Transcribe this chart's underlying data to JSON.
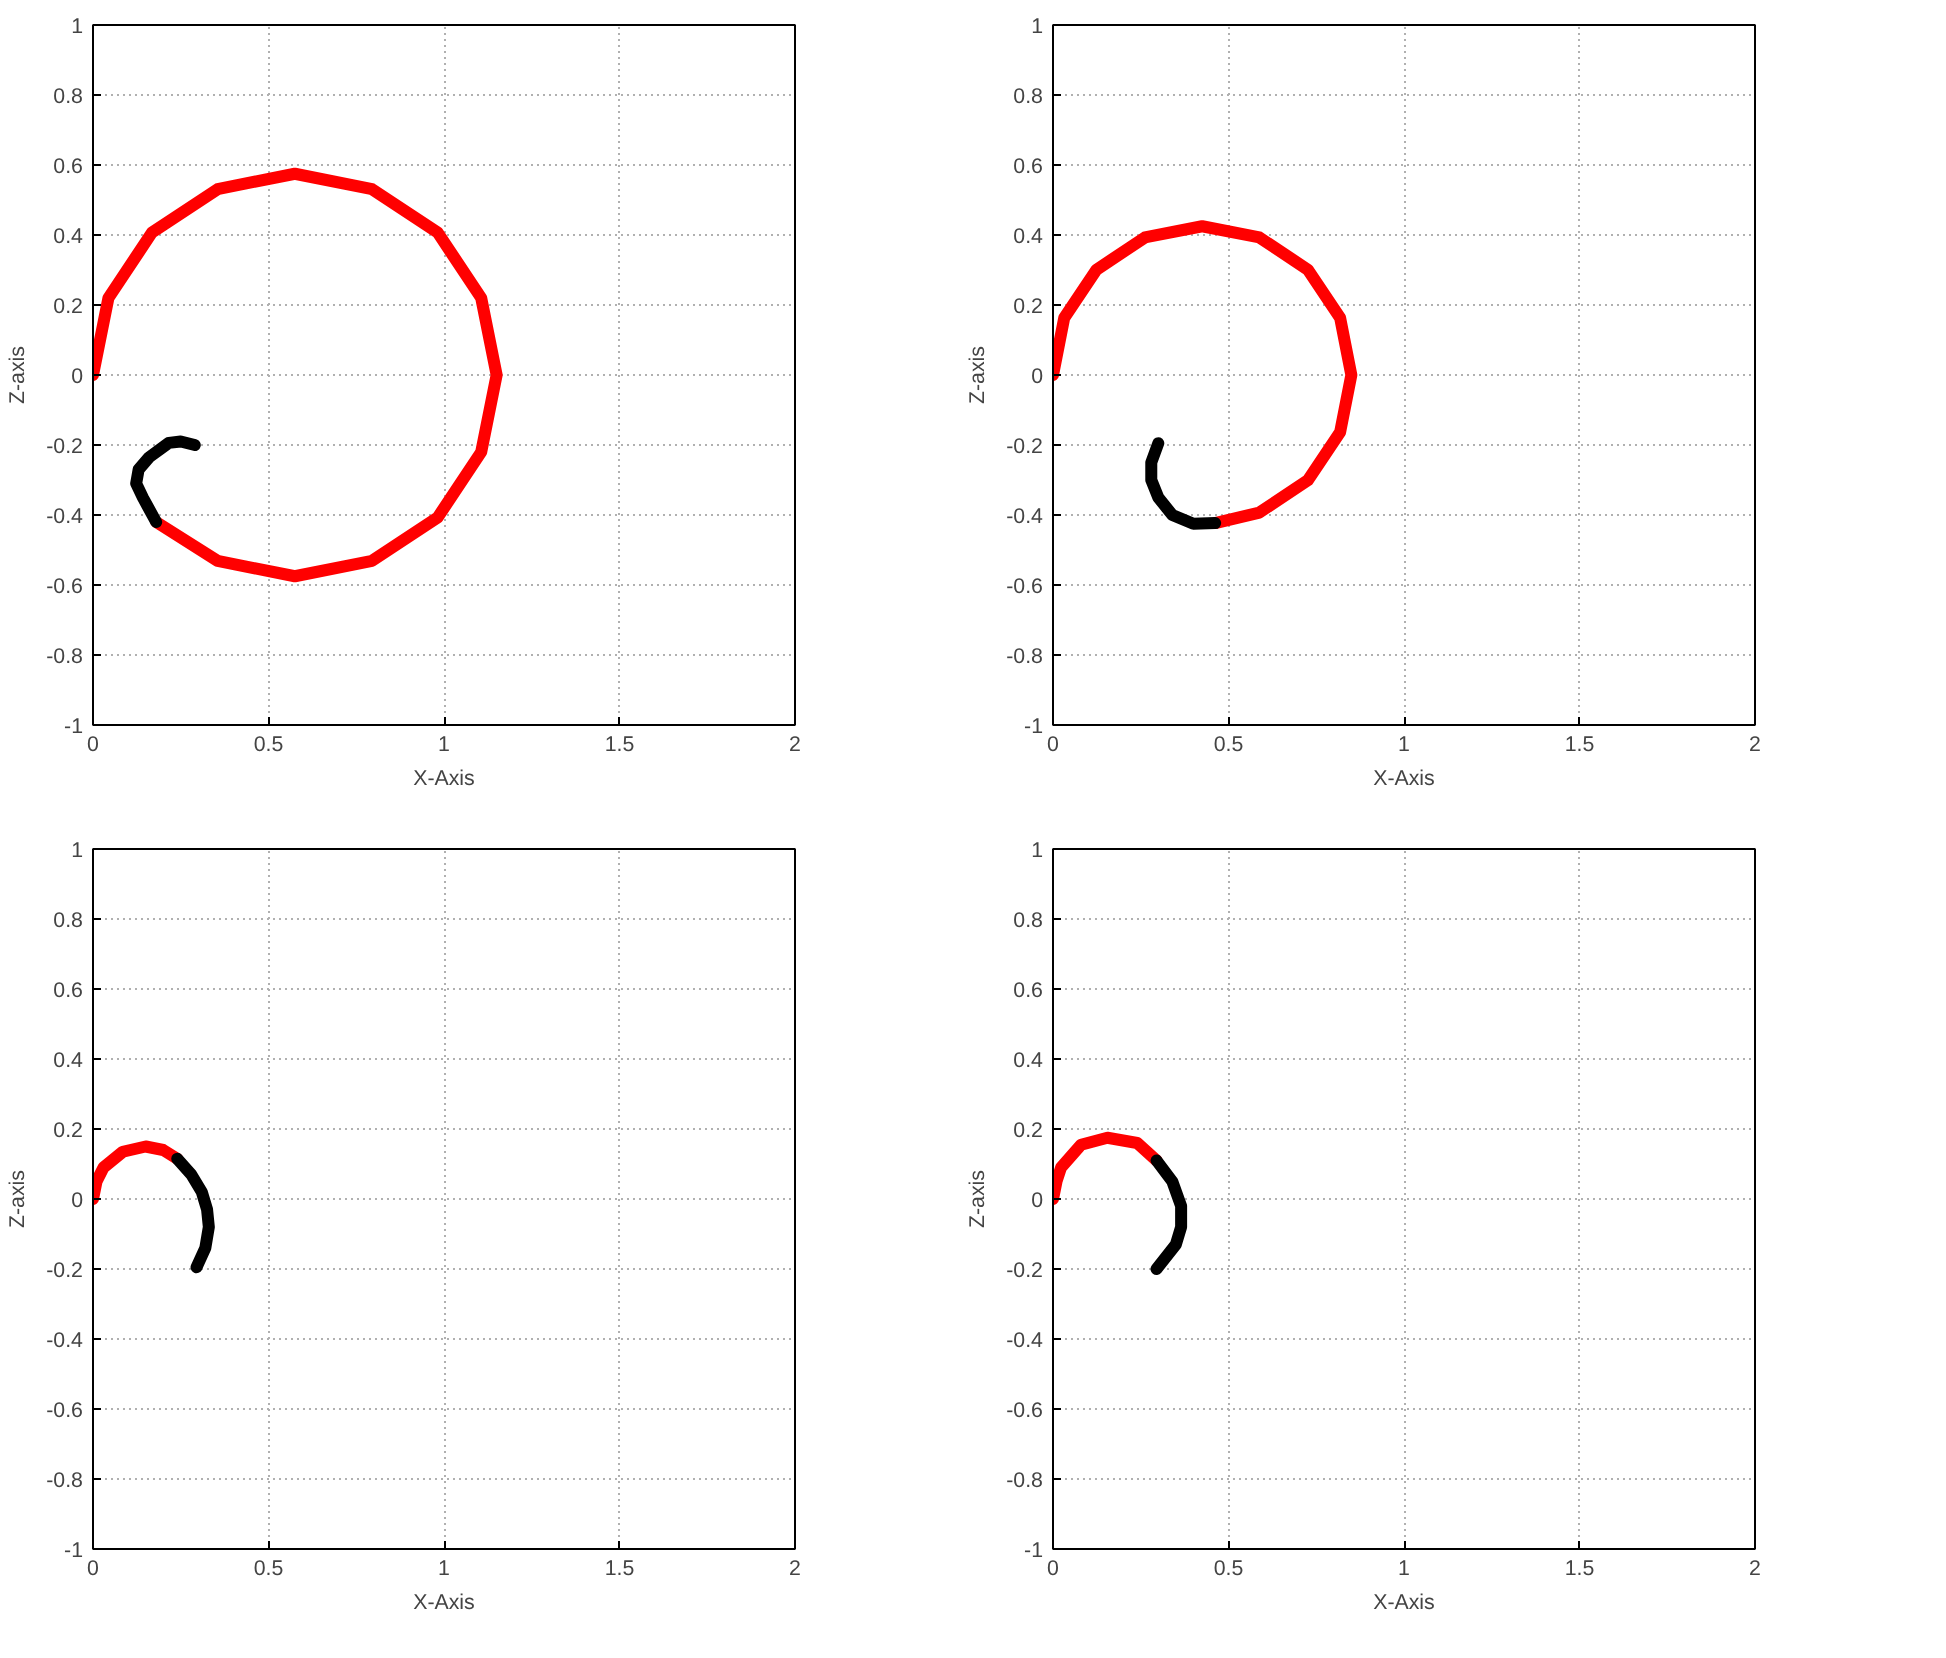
{
  "chart_data": [
    {
      "type": "line",
      "xlabel": "X-Axis",
      "ylabel": "Z-axis",
      "xlim": [
        0,
        2
      ],
      "ylim": [
        -1,
        1
      ],
      "xticks": [
        0,
        0.5,
        1,
        1.5,
        2
      ],
      "yticks": [
        -1,
        -0.8,
        -0.6,
        -0.4,
        -0.2,
        0,
        0.2,
        0.4,
        0.6,
        0.8,
        1
      ],
      "grid": true,
      "marker": "none",
      "line_style": "solid",
      "series": [
        {
          "color": "#ff0000",
          "x": [
            0,
            0.044,
            0.168,
            0.355,
            0.575,
            0.795,
            0.982,
            1.106,
            1.15,
            1.106,
            0.982,
            0.795,
            0.575,
            0.355,
            0.18
          ],
          "values": [
            0,
            0.22,
            0.407,
            0.531,
            0.575,
            0.531,
            0.407,
            0.22,
            0,
            -0.22,
            -0.407,
            -0.531,
            -0.575,
            -0.531,
            -0.42
          ]
        },
        {
          "color": "#000000",
          "x": [
            0.18,
            0.142,
            0.123,
            0.13,
            0.16,
            0.216,
            0.25,
            0.29
          ],
          "values": [
            -0.42,
            -0.35,
            -0.31,
            -0.27,
            -0.235,
            -0.194,
            -0.19,
            -0.2
          ]
        }
      ]
    },
    {
      "type": "line",
      "xlabel": "X-Axis",
      "ylabel": "Z-axis",
      "xlim": [
        0,
        2
      ],
      "ylim": [
        -1,
        1
      ],
      "xticks": [
        0,
        0.5,
        1,
        1.5,
        2
      ],
      "yticks": [
        -1,
        -0.8,
        -0.6,
        -0.4,
        -0.2,
        0,
        0.2,
        0.4,
        0.6,
        0.8,
        1
      ],
      "grid": true,
      "marker": "none",
      "line_style": "solid",
      "series": [
        {
          "color": "#ff0000",
          "x": [
            0,
            0.032,
            0.124,
            0.262,
            0.425,
            0.588,
            0.726,
            0.818,
            0.85,
            0.818,
            0.726,
            0.588,
            0.462
          ],
          "values": [
            0,
            0.163,
            0.301,
            0.393,
            0.425,
            0.393,
            0.301,
            0.163,
            0,
            -0.163,
            -0.301,
            -0.393,
            -0.423
          ]
        },
        {
          "color": "#000000",
          "x": [
            0.462,
            0.4,
            0.34,
            0.3,
            0.28,
            0.28,
            0.3
          ],
          "values": [
            -0.423,
            -0.425,
            -0.4,
            -0.35,
            -0.3,
            -0.25,
            -0.195
          ]
        }
      ]
    },
    {
      "type": "line",
      "xlabel": "X-Axis",
      "ylabel": "Z-axis",
      "xlim": [
        0,
        2
      ],
      "ylim": [
        -1,
        1
      ],
      "xticks": [
        0,
        0.5,
        1,
        1.5,
        2
      ],
      "yticks": [
        -1,
        -0.8,
        -0.6,
        -0.4,
        -0.2,
        0,
        0.2,
        0.4,
        0.6,
        0.8,
        1
      ],
      "grid": true,
      "marker": "none",
      "line_style": "solid",
      "series": [
        {
          "color": "#ff0000",
          "x": [
            0,
            0.01,
            0.03,
            0.085,
            0.15,
            0.2,
            0.24
          ],
          "values": [
            0,
            0.05,
            0.09,
            0.135,
            0.15,
            0.14,
            0.115
          ]
        },
        {
          "color": "#000000",
          "x": [
            0.24,
            0.28,
            0.31,
            0.325,
            0.33,
            0.32,
            0.295
          ],
          "values": [
            0.115,
            0.07,
            0.02,
            -0.03,
            -0.08,
            -0.14,
            -0.195
          ]
        }
      ]
    },
    {
      "type": "line",
      "xlabel": "X-Axis",
      "ylabel": "Z-axis",
      "xlim": [
        0,
        2
      ],
      "ylim": [
        -1,
        1
      ],
      "xticks": [
        0,
        0.5,
        1,
        1.5,
        2
      ],
      "yticks": [
        -1,
        -0.8,
        -0.6,
        -0.4,
        -0.2,
        0,
        0.2,
        0.4,
        0.6,
        0.8,
        1
      ],
      "grid": true,
      "marker": "none",
      "line_style": "solid",
      "series": [
        {
          "color": "#ff0000",
          "x": [
            0,
            0.01,
            0.023,
            0.08,
            0.155,
            0.24,
            0.295
          ],
          "values": [
            0,
            0.05,
            0.09,
            0.155,
            0.175,
            0.16,
            0.11
          ]
        },
        {
          "color": "#000000",
          "x": [
            0.295,
            0.34,
            0.365,
            0.365,
            0.35,
            0.295
          ],
          "values": [
            0.11,
            0.05,
            -0.02,
            -0.08,
            -0.13,
            -0.2
          ]
        }
      ]
    }
  ]
}
